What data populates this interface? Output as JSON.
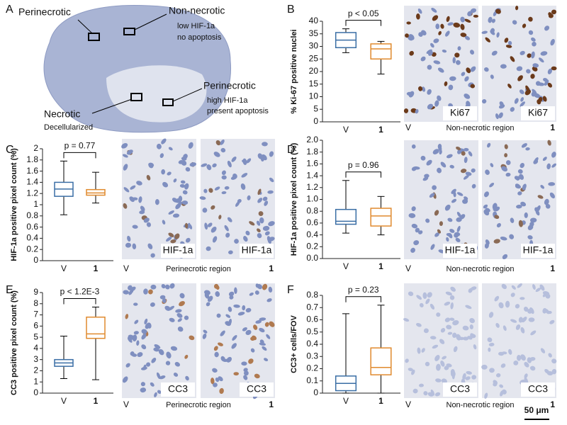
{
  "panel_a": {
    "letter": "A",
    "perinecrotic_top": "Perinecrotic",
    "non_necrotic": {
      "title": "Non-necrotic",
      "lines": [
        "low HIF-1a",
        "no apoptosis"
      ]
    },
    "perinecrotic_right": {
      "title": "Perinecrotic",
      "lines": [
        "high HIF-1a",
        "present apoptosis"
      ]
    },
    "necrotic": {
      "title": "Necrotic",
      "lines": [
        "Decellularized"
      ]
    }
  },
  "scale_bar": "50 μm",
  "chart_data": [
    {
      "type": "box",
      "panel": "B",
      "ylabel": "% Ki-67 positive nuclei",
      "annotation": "p < 0.05",
      "categories": [
        "V",
        "1"
      ],
      "boxes": [
        {
          "min": 27.5,
          "q1": 29.5,
          "median": 32.5,
          "q3": 35.5,
          "max": 37,
          "color": "#3a6ea5"
        },
        {
          "min": 19,
          "q1": 25,
          "median": 29,
          "q3": 31,
          "max": 32,
          "color": "#e08a2e"
        }
      ],
      "ylim": [
        0,
        40
      ],
      "yticks": [
        0,
        5,
        10,
        15,
        20,
        25,
        30,
        35,
        40
      ],
      "images": [
        "Ki67",
        "Ki67"
      ],
      "image_caption": {
        "left": "V",
        "center": "Non-necrotic region",
        "right": "1"
      }
    },
    {
      "type": "box",
      "panel": "C",
      "ylabel": "HIF-1a positive pixel count (%)",
      "annotation": "p = 0.77",
      "categories": [
        "V",
        "1"
      ],
      "boxes": [
        {
          "min": 0.82,
          "q1": 1.15,
          "median": 1.28,
          "q3": 1.4,
          "max": 1.78,
          "color": "#3a6ea5"
        },
        {
          "min": 1.03,
          "q1": 1.17,
          "median": 1.21,
          "q3": 1.27,
          "max": 1.58,
          "color": "#e08a2e"
        }
      ],
      "ylim": [
        0,
        2
      ],
      "yticks": [
        0,
        0.2,
        0.4,
        0.6,
        0.8,
        1,
        1.2,
        1.4,
        1.6,
        1.8,
        2
      ],
      "images": [
        "HIF-1a",
        "HIF-1a"
      ],
      "image_caption": {
        "left": "V",
        "center": "Perinecrotic region",
        "right": "1"
      }
    },
    {
      "type": "box",
      "panel": "D",
      "ylabel": "HIF-1a positive pixel count (%)",
      "annotation": "p = 0.96",
      "categories": [
        "V",
        "1"
      ],
      "boxes": [
        {
          "min": 0.43,
          "q1": 0.58,
          "median": 0.63,
          "q3": 0.83,
          "max": 1.32,
          "color": "#3a6ea5"
        },
        {
          "min": 0.4,
          "q1": 0.55,
          "median": 0.72,
          "q3": 0.85,
          "max": 1.05,
          "color": "#e08a2e"
        }
      ],
      "ylim": [
        0,
        2
      ],
      "yticks": [
        {
          "value": 0,
          "label": "0.0"
        },
        0.2,
        0.4,
        0.6,
        0.8,
        {
          "value": 1,
          "label": "1.0"
        },
        1.2,
        1.4,
        1.6,
        1.8,
        {
          "value": 2,
          "label": "2.0"
        }
      ],
      "images": [
        "HIF-1a",
        "HIF-1a"
      ],
      "image_caption": {
        "left": "V",
        "center": "Non-necrotic region",
        "right": "1"
      }
    },
    {
      "type": "box",
      "panel": "E",
      "ylabel": "CC3  positive pixel count (%)",
      "annotation": "p < 1.2E-3",
      "categories": [
        "V",
        "1"
      ],
      "boxes": [
        {
          "min": 1.3,
          "q1": 2.4,
          "median": 2.7,
          "q3": 3.0,
          "max": 5.1,
          "color": "#3a6ea5"
        },
        {
          "min": 1.2,
          "q1": 4.9,
          "median": 5.3,
          "q3": 6.8,
          "max": 7.7,
          "color": "#e08a2e"
        }
      ],
      "ylim": [
        0,
        9
      ],
      "yticks": [
        0,
        1,
        2,
        3,
        4,
        5,
        6,
        7,
        8,
        9
      ],
      "images": [
        "CC3",
        "CC3"
      ],
      "image_caption": {
        "left": "V",
        "center": "Perinecrotic region",
        "right": "1"
      }
    },
    {
      "type": "box",
      "panel": "F",
      "ylabel": "CC3+ cells/FOV",
      "annotation": "p = 0.23",
      "categories": [
        "V",
        "1"
      ],
      "boxes": [
        {
          "min": 0,
          "q1": 0.02,
          "median": 0.08,
          "q3": 0.14,
          "max": 0.65,
          "color": "#3a6ea5"
        },
        {
          "min": 0,
          "q1": 0.15,
          "median": 0.21,
          "q3": 0.37,
          "max": 0.72,
          "color": "#e08a2e"
        }
      ],
      "ylim": [
        0,
        0.8
      ],
      "yticks": [
        0,
        0.1,
        0.2,
        0.3,
        0.4,
        0.5,
        0.6,
        0.7,
        0.8
      ],
      "images": [
        "CC3",
        "CC3"
      ],
      "image_caption": {
        "left": "V",
        "center": "Non-necrotic region",
        "right": "1"
      }
    }
  ]
}
